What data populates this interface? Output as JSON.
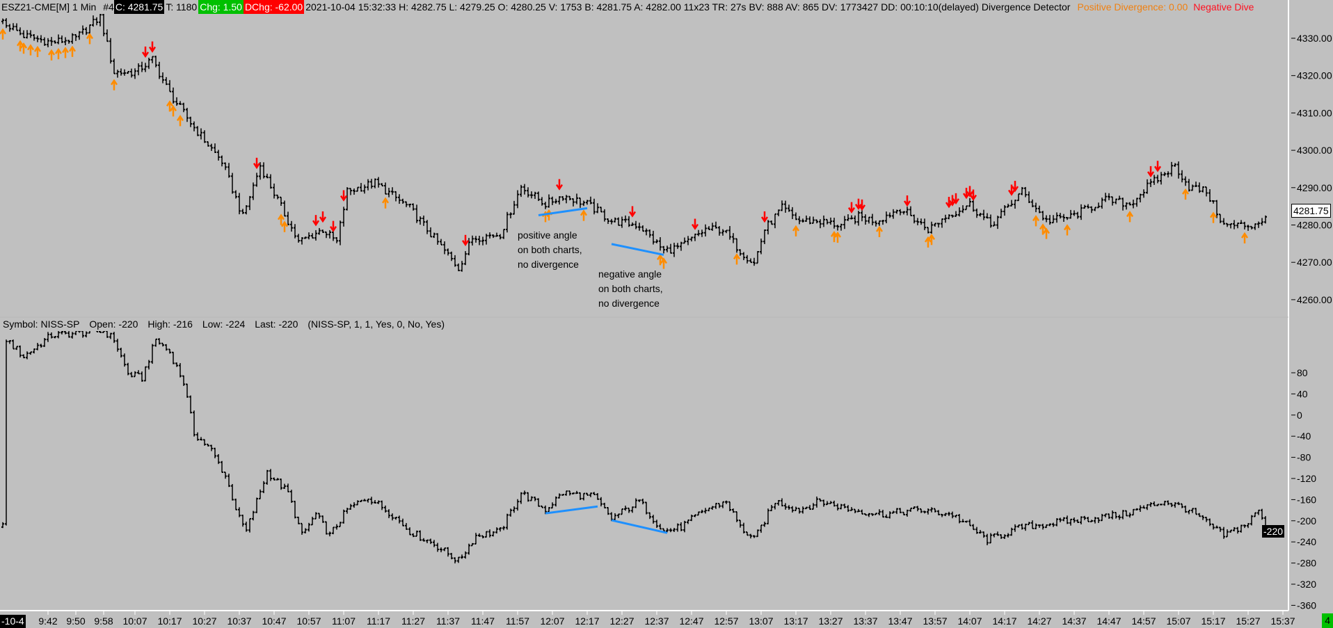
{
  "header": {
    "symbol": "ESZ21-CME[M]",
    "interval": "1 Min",
    "chart_no": "#4",
    "close": "C: 4281.75",
    "trades": "T: 1180",
    "change": "Chg: 1.50",
    "dchange": "DChg: -62.00",
    "details": "2021-10-04 15:32:33 H: 4282.75 L: 4279.25 O: 4280.25 V: 1753 B: 4281.75 A: 4282.00 11x23 TR: 27s BV: 888 AV: 865 DV: 1773427 DD: 00:10:10(delayed) Divergence Detector",
    "positive_divergence": "Positive Divergence: 0.00",
    "negative_divergence": "Negative Dive"
  },
  "subchart_header": {
    "symbol": "Symbol: NISS-SP",
    "open": "Open: -220",
    "high": "High: -216",
    "low": "Low: -224",
    "last": "Last: -220",
    "params": "(NISS-SP, 1, 1, Yes, 0, No, Yes)"
  },
  "annotations": [
    {
      "lines": [
        "positive angle",
        "on both charts,",
        "no divergence"
      ]
    },
    {
      "lines": [
        "negative angle",
        "on both charts,",
        "no divergence"
      ]
    }
  ],
  "time_axis": {
    "date_label": "-10-4",
    "labels": [
      "9:42",
      "9:50",
      "9:58",
      "10:07",
      "10:17",
      "10:27",
      "10:37",
      "10:47",
      "10:57",
      "11:07",
      "11:17",
      "11:27",
      "11:37",
      "11:47",
      "11:57",
      "12:07",
      "12:17",
      "12:27",
      "12:37",
      "12:47",
      "12:57",
      "13:07",
      "13:17",
      "13:27",
      "13:37",
      "13:47",
      "13:57",
      "14:07",
      "14:17",
      "14:27",
      "14:37",
      "14:47",
      "14:57",
      "15:07",
      "15:17",
      "15:27",
      "15:37"
    ],
    "label_minutes_from_0942": [
      0,
      8,
      16,
      25,
      35,
      45,
      55,
      65,
      75,
      85,
      95,
      105,
      115,
      125,
      135,
      145,
      155,
      165,
      175,
      185,
      195,
      205,
      215,
      225,
      235,
      245,
      255,
      265,
      275,
      285,
      295,
      305,
      315,
      325,
      335,
      345,
      355
    ]
  },
  "status_badge": "4",
  "colors": {
    "background": "#c0c0c0",
    "up_arrow": "#ff8c00",
    "down_arrow": "#ff0000",
    "trendline": "#1e90ff",
    "bars": "#000000"
  },
  "chart_data": [
    {
      "type": "ohlc",
      "name": "ESZ21-CME price",
      "x_unit": "minutes from 9:42",
      "ylim": [
        4255,
        4338
      ],
      "y_ticks": [
        "4330.00",
        "4320.00",
        "4310.00",
        "4300.00",
        "4290.00",
        "4280.00",
        "4270.00",
        "4260.00"
      ],
      "y_tick_values": [
        4330,
        4320,
        4310,
        4300,
        4290,
        4280,
        4270,
        4260
      ],
      "current_value": "4281.75",
      "close_path": [
        [
          -13,
          4334.5
        ],
        [
          -7,
          4330.7
        ],
        [
          1,
          4328.9
        ],
        [
          8,
          4330
        ],
        [
          15,
          4335.7
        ],
        [
          19,
          4320.9
        ],
        [
          25,
          4320.9
        ],
        [
          30,
          4324.3
        ],
        [
          35,
          4315.2
        ],
        [
          42,
          4306.1
        ],
        [
          50,
          4297
        ],
        [
          56,
          4282.2
        ],
        [
          61,
          4295.9
        ],
        [
          66,
          4286.7
        ],
        [
          72,
          4275.4
        ],
        [
          79,
          4278.8
        ],
        [
          83,
          4275.4
        ],
        [
          86,
          4289
        ],
        [
          94,
          4291.3
        ],
        [
          104,
          4284.5
        ],
        [
          113,
          4274.2
        ],
        [
          118,
          4268.5
        ],
        [
          122,
          4276.5
        ],
        [
          130,
          4277.6
        ],
        [
          136,
          4290.2
        ],
        [
          143,
          4285.6
        ],
        [
          148,
          4287.9
        ],
        [
          155,
          4285.6
        ],
        [
          162,
          4281.1
        ],
        [
          170,
          4279.9
        ],
        [
          177,
          4273.1
        ],
        [
          182,
          4274.2
        ],
        [
          189,
          4278.8
        ],
        [
          194,
          4278.8
        ],
        [
          199,
          4273.1
        ],
        [
          203,
          4269.7
        ],
        [
          206,
          4278.8
        ],
        [
          211,
          4284.5
        ],
        [
          216,
          4281.1
        ],
        [
          221,
          4281.1
        ],
        [
          228,
          4279.9
        ],
        [
          233,
          4282.2
        ],
        [
          238,
          4281.1
        ],
        [
          245,
          4284.5
        ],
        [
          253,
          4278.8
        ],
        [
          258,
          4282.2
        ],
        [
          265,
          4285.6
        ],
        [
          271,
          4279.9
        ],
        [
          280,
          4289
        ],
        [
          287,
          4281.1
        ],
        [
          294,
          4282.2
        ],
        [
          304,
          4286.7
        ],
        [
          311,
          4285.6
        ],
        [
          316,
          4290.2
        ],
        [
          324,
          4295.9
        ],
        [
          328,
          4290.2
        ],
        [
          333,
          4289
        ],
        [
          338,
          4279.9
        ],
        [
          346,
          4279.9
        ],
        [
          350,
          4281.75
        ]
      ],
      "up_arrows_minutes": [
        -13,
        -8,
        -7,
        -5,
        -3,
        1,
        3,
        5,
        7,
        12,
        19,
        35,
        36,
        38,
        67,
        68,
        97,
        143,
        144,
        154,
        176,
        177,
        198,
        215,
        226,
        227,
        239,
        253,
        254,
        284,
        286,
        287,
        293,
        311,
        327,
        335,
        344
      ],
      "down_arrows_minutes": [
        15,
        28,
        30,
        60,
        77,
        79,
        82,
        85,
        120,
        147,
        168,
        186,
        206,
        231,
        233,
        234,
        247,
        259,
        260,
        261,
        264,
        265,
        266,
        277,
        278,
        317,
        319
      ],
      "trendlines": [
        [
          [
            141,
            4282.6
          ],
          [
            155,
            4284.5
          ]
        ],
        [
          [
            162,
            4274.9
          ],
          [
            177,
            4272.0
          ]
        ]
      ]
    },
    {
      "type": "ohlc",
      "name": "NISS-SP",
      "x_unit": "minutes from 9:42",
      "ylim": [
        -370,
        156
      ],
      "y_ticks": [
        "80",
        "40",
        "0",
        "-40",
        "-80",
        "-120",
        "-160",
        "-200",
        "-240",
        "-280",
        "-320",
        "-360"
      ],
      "y_tick_values": [
        80,
        40,
        0,
        -40,
        -80,
        -120,
        -160,
        -200,
        -240,
        -280,
        -320,
        -360
      ],
      "current_value": "-220",
      "close_path": [
        [
          -13,
          -212
        ],
        [
          -12,
          143
        ],
        [
          -7,
          111
        ],
        [
          1,
          151
        ],
        [
          16,
          159
        ],
        [
          19,
          143
        ],
        [
          23,
          78
        ],
        [
          27,
          70
        ],
        [
          31,
          143
        ],
        [
          35,
          119
        ],
        [
          39,
          62
        ],
        [
          42,
          -34
        ],
        [
          47,
          -67
        ],
        [
          51,
          -115
        ],
        [
          55,
          -196
        ],
        [
          57,
          -220
        ],
        [
          60,
          -163
        ],
        [
          63,
          -107
        ],
        [
          69,
          -147
        ],
        [
          73,
          -228
        ],
        [
          77,
          -188
        ],
        [
          81,
          -228
        ],
        [
          86,
          -179
        ],
        [
          92,
          -155
        ],
        [
          99,
          -188
        ],
        [
          104,
          -220
        ],
        [
          111,
          -244
        ],
        [
          118,
          -276
        ],
        [
          123,
          -228
        ],
        [
          130,
          -220
        ],
        [
          136,
          -147
        ],
        [
          143,
          -179
        ],
        [
          148,
          -147
        ],
        [
          157,
          -155
        ],
        [
          162,
          -196
        ],
        [
          170,
          -163
        ],
        [
          177,
          -220
        ],
        [
          182,
          -212
        ],
        [
          189,
          -179
        ],
        [
          195,
          -163
        ],
        [
          199,
          -212
        ],
        [
          203,
          -236
        ],
        [
          209,
          -163
        ],
        [
          216,
          -179
        ],
        [
          222,
          -163
        ],
        [
          231,
          -179
        ],
        [
          240,
          -188
        ],
        [
          250,
          -179
        ],
        [
          260,
          -188
        ],
        [
          270,
          -236
        ],
        [
          280,
          -212
        ],
        [
          289,
          -204
        ],
        [
          299,
          -196
        ],
        [
          309,
          -188
        ],
        [
          321,
          -163
        ],
        [
          328,
          -179
        ],
        [
          338,
          -228
        ],
        [
          345,
          -204
        ],
        [
          348,
          -179
        ],
        [
          350,
          -220
        ]
      ],
      "trendlines": [
        [
          [
            143,
            -186
          ],
          [
            158,
            -173
          ]
        ],
        [
          [
            162,
            -199
          ],
          [
            178,
            -223
          ]
        ]
      ]
    }
  ]
}
